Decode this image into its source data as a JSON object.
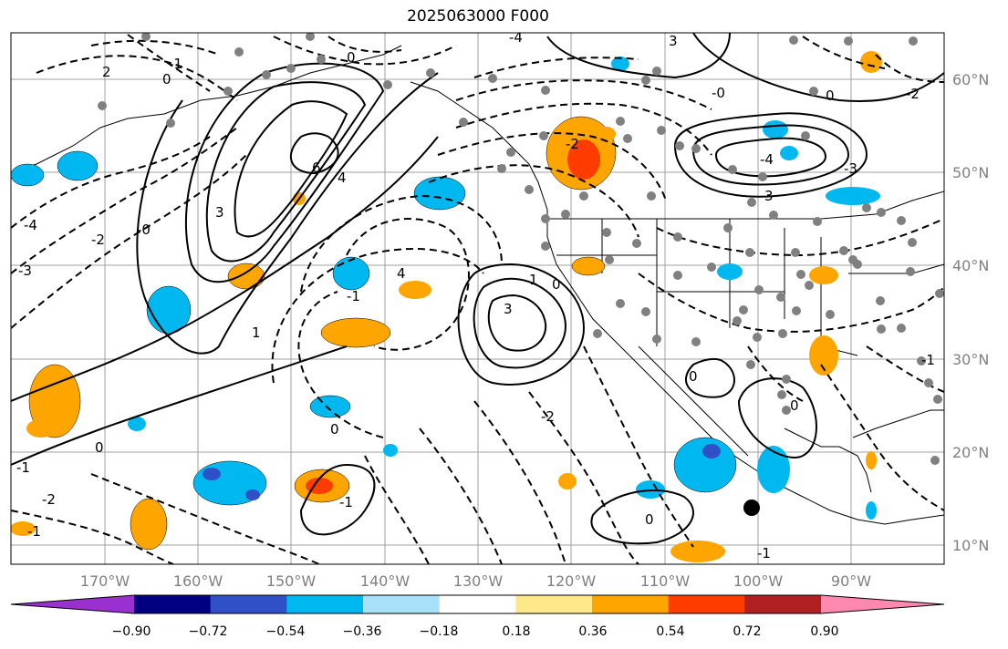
{
  "title": "2025063000 F000",
  "lat_labels": [
    "60°N",
    "50°N",
    "40°N",
    "30°N",
    "20°N",
    "10°N"
  ],
  "lon_labels": [
    "170°W",
    "160°W",
    "150°W",
    "140°W",
    "130°W",
    "120°W",
    "110°W",
    "100°W",
    "90°W"
  ],
  "colorbar": {
    "tick_labels": [
      "−0.90",
      "−0.72",
      "−0.54",
      "−0.36",
      "−0.18",
      "0.18",
      "0.36",
      "0.54",
      "0.72",
      "0.90"
    ],
    "colors": [
      "#9b30d0",
      "#000080",
      "#3050c8",
      "#00b8f0",
      "#a8e0fa",
      "#ffffff",
      "#ffe88a",
      "#ffa500",
      "#ff3c00",
      "#b02020",
      "#ff88b0"
    ]
  },
  "contour_labels": [
    "2",
    "0",
    "-4",
    "3",
    "0",
    "-2",
    "6",
    "4",
    "3",
    "1",
    "-1",
    "-0",
    "0",
    "-2",
    "-4",
    "-3",
    "3",
    "1",
    "-1",
    "0",
    "-2",
    "0",
    "-1",
    "4",
    "3",
    "-0",
    "-2",
    "-4",
    "-3",
    "-1",
    "-2",
    "0",
    "-1",
    "0",
    "-1",
    "0",
    "0",
    "-1"
  ],
  "colors": {
    "positive_fill": "#ffa500",
    "strong_positive_fill": "#ff3c00",
    "negative_fill": "#00b8f0",
    "strong_negative_fill": "#3050c8",
    "station_marker": "#808080",
    "grid": "#a0a0a0"
  }
}
